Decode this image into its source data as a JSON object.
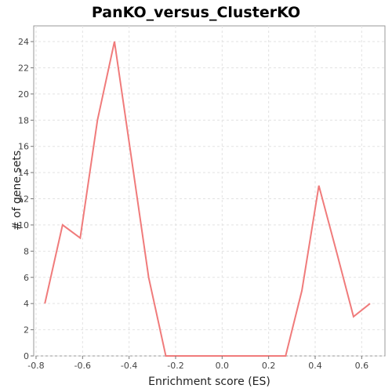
{
  "chart_data": {
    "type": "line",
    "title": "PanKO_versus_ClusterKO",
    "xlabel": "Enrichment score (ES)",
    "ylabel": "# of gene sets",
    "xlim": [
      -0.81,
      0.7
    ],
    "ylim": [
      0,
      25.2
    ],
    "x_ticks": [
      -0.8,
      -0.6,
      -0.4,
      -0.2,
      0.0,
      0.2,
      0.4,
      0.6
    ],
    "x_tick_labels": [
      "-0.8",
      "-0.6",
      "-0.4",
      "-0.2",
      "0.0",
      "0.2",
      "0.4",
      "0.6"
    ],
    "y_ticks": [
      0,
      2,
      4,
      6,
      8,
      10,
      12,
      14,
      16,
      18,
      20,
      22,
      24
    ],
    "y_tick_labels": [
      "0",
      "2",
      "4",
      "6",
      "8",
      "10",
      "12",
      "14",
      "16",
      "18",
      "20",
      "22",
      "24"
    ],
    "grid": true,
    "legend": "none",
    "series": [
      {
        "color": "#f07b7b",
        "x": [
          -0.762,
          -0.686,
          -0.61,
          -0.536,
          -0.463,
          -0.389,
          -0.316,
          -0.242,
          0.273,
          0.343,
          0.416,
          0.491,
          0.565,
          0.636
        ],
        "y": [
          4,
          10,
          9,
          18,
          24,
          15,
          6,
          0,
          0,
          5,
          13,
          8,
          3,
          4
        ]
      }
    ]
  }
}
